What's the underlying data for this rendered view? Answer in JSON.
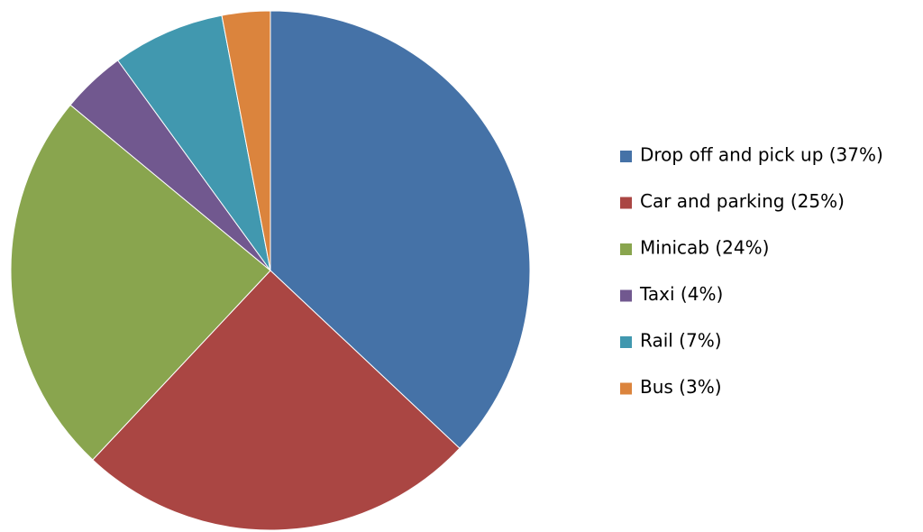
{
  "chart_data": {
    "type": "pie",
    "categories": [
      "Drop off and pick up (37%)",
      "Car and parking (25%)",
      "Minicab (24%)",
      "Taxi (4%)",
      "Rail (7%)",
      "Bus (3%)"
    ],
    "values": [
      37,
      25,
      24,
      4,
      7,
      3
    ],
    "colors": [
      "#4572a7",
      "#aa4643",
      "#89a54e",
      "#71588f",
      "#4198af",
      "#db843d"
    ],
    "legend": "right"
  }
}
